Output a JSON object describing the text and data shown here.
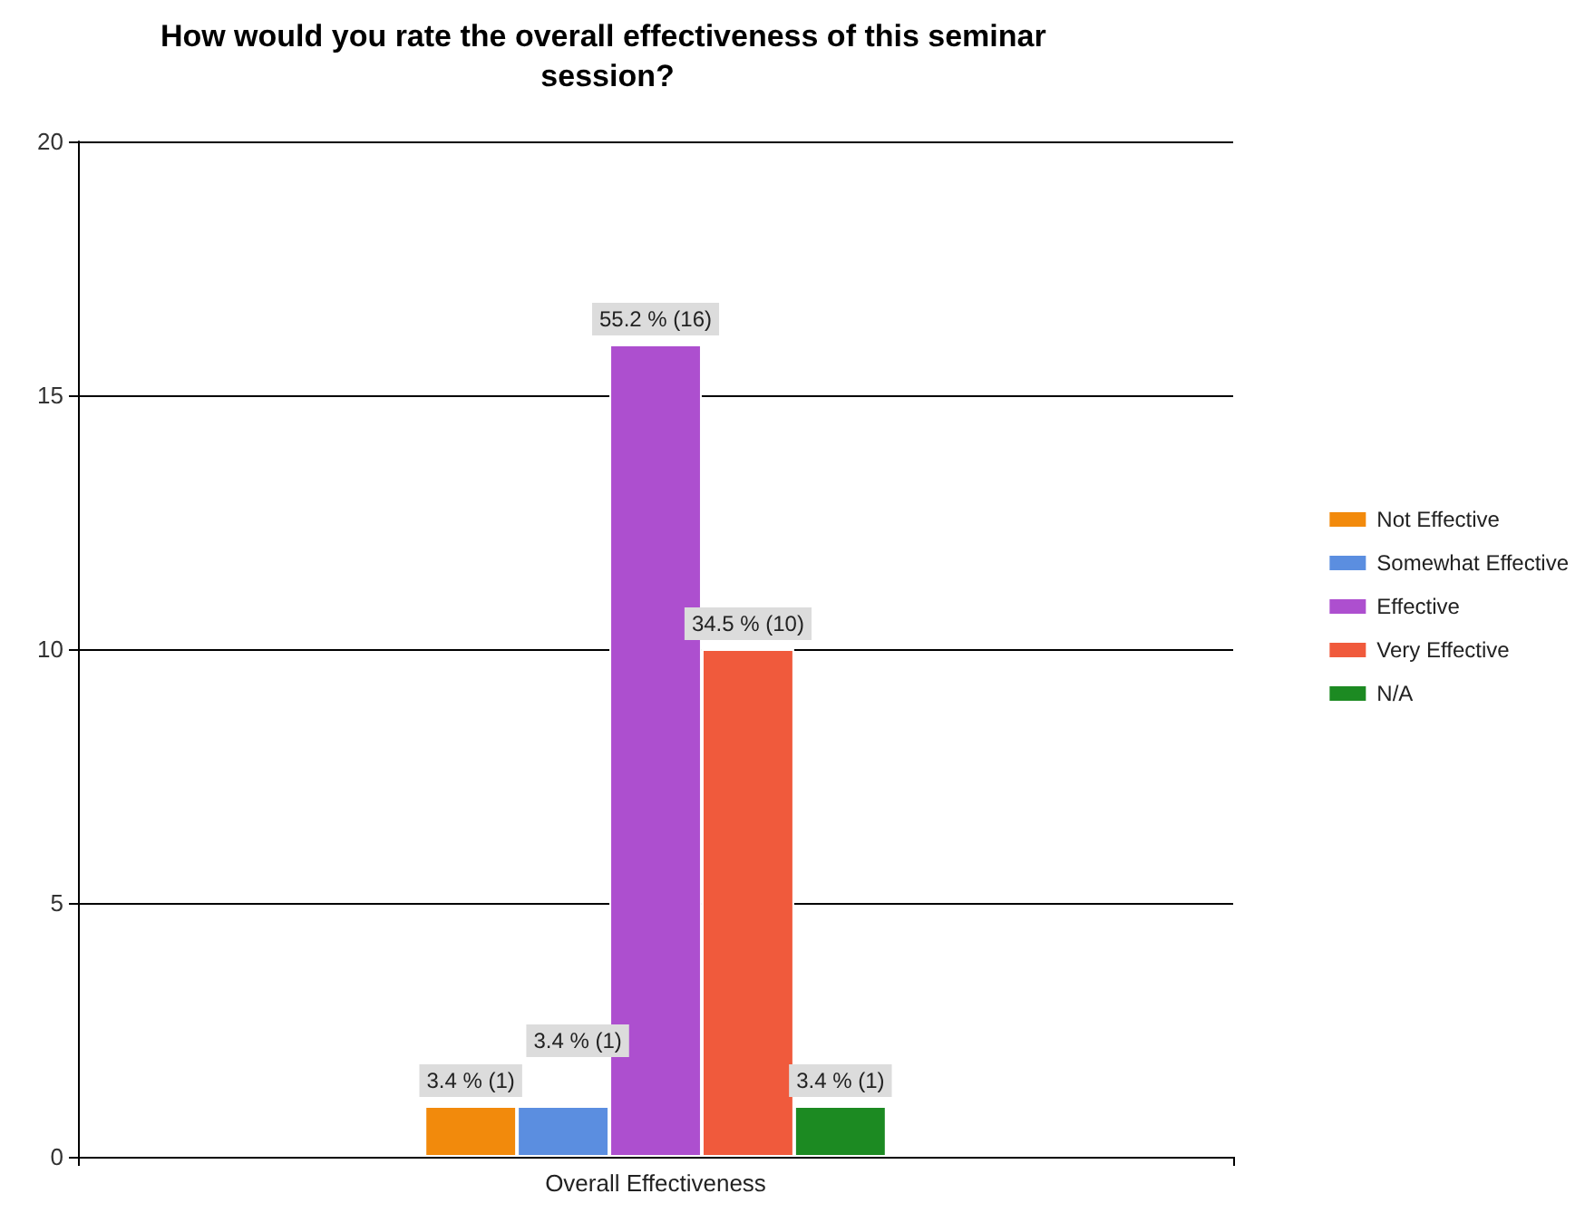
{
  "chart_data": {
    "type": "bar",
    "title": "How would you rate the overall effectiveness of this seminar session?",
    "categories": [
      "Overall Effectiveness"
    ],
    "series": [
      {
        "name": "Not Effective",
        "color": "#f28a0c",
        "values": [
          1
        ],
        "value_labels": [
          "3.4 % (1)"
        ]
      },
      {
        "name": "Somewhat Effective",
        "color": "#5b8ee0",
        "values": [
          1
        ],
        "value_labels": [
          "3.4 % (1)"
        ]
      },
      {
        "name": "Effective",
        "color": "#ad4fcf",
        "values": [
          16
        ],
        "value_labels": [
          "55.2 % (16)"
        ]
      },
      {
        "name": "Very Effective",
        "color": "#f05a3c",
        "values": [
          10
        ],
        "value_labels": [
          "34.5 % (10)"
        ]
      },
      {
        "name": "N/A",
        "color": "#1c8a22",
        "values": [
          1
        ],
        "value_labels": [
          "3.4 % (1)"
        ]
      }
    ],
    "ylim": [
      0,
      20
    ],
    "yticks": [
      0,
      5,
      10,
      15,
      20
    ],
    "grid": "y",
    "legend": "right"
  }
}
